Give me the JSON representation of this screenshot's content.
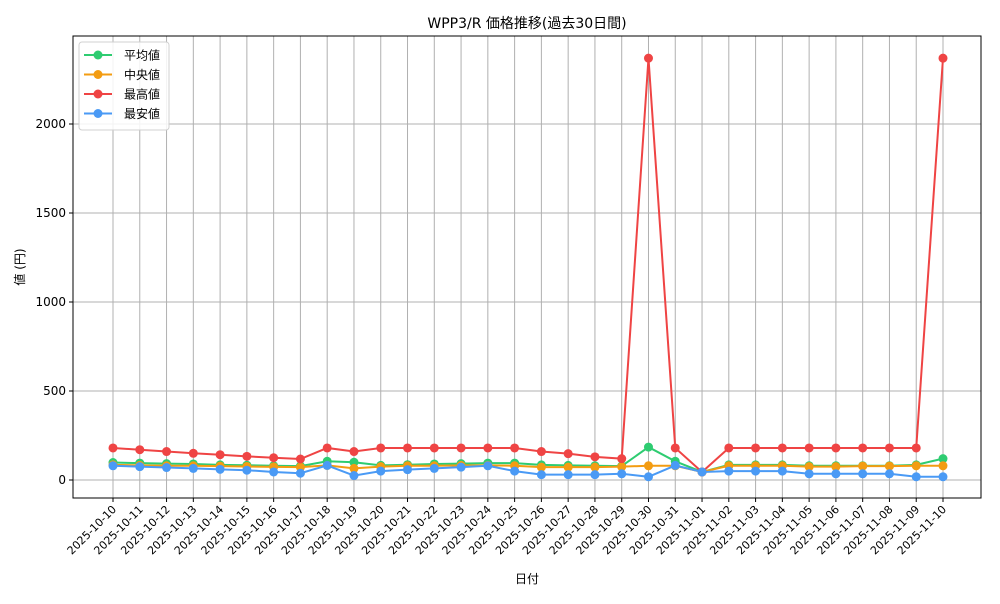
{
  "chart_data": {
    "type": "line",
    "title": "WPP3/R 価格推移(過去30日間)",
    "xlabel": "日付",
    "ylabel": "値 (円)",
    "ylim": [
      -95,
      2475
    ],
    "yticks": [
      0,
      500,
      1000,
      1500,
      2000
    ],
    "grid": true,
    "legend_position": "upper left",
    "categories": [
      "2025-10-10",
      "2025-10-11",
      "2025-10-12",
      "2025-10-13",
      "2025-10-14",
      "2025-10-15",
      "2025-10-16",
      "2025-10-17",
      "2025-10-18",
      "2025-10-19",
      "2025-10-20",
      "2025-10-21",
      "2025-10-22",
      "2025-10-23",
      "2025-10-24",
      "2025-10-25",
      "2025-10-26",
      "2025-10-27",
      "2025-10-28",
      "2025-10-29",
      "2025-10-30",
      "2025-10-31",
      "2025-11-01",
      "2025-11-02",
      "2025-11-03",
      "2025-11-04",
      "2025-11-05",
      "2025-11-06",
      "2025-11-07",
      "2025-11-08",
      "2025-11-09",
      "2025-11-10"
    ],
    "series": [
      {
        "name": "平均値",
        "color": "#2ecc71",
        "values": [
          98,
          95,
          92,
          90,
          85,
          83,
          80,
          78,
          105,
          100,
          82,
          86,
          90,
          92,
          95,
          95,
          85,
          82,
          80,
          78,
          185,
          105,
          45,
          85,
          85,
          85,
          80,
          80,
          80,
          80,
          85,
          120
        ]
      },
      {
        "name": "中央値",
        "color": "#f39c12",
        "values": [
          85,
          82,
          80,
          80,
          78,
          76,
          74,
          72,
          82,
          65,
          75,
          80,
          80,
          82,
          82,
          80,
          72,
          72,
          72,
          75,
          80,
          80,
          45,
          80,
          80,
          80,
          75,
          75,
          78,
          78,
          80,
          80
        ]
      },
      {
        "name": "最高値",
        "color": "#ef4444",
        "values": [
          180,
          170,
          160,
          150,
          142,
          133,
          125,
          118,
          180,
          160,
          180,
          180,
          180,
          180,
          180,
          180,
          160,
          148,
          130,
          120,
          2370,
          180,
          45,
          180,
          180,
          180,
          180,
          180,
          180,
          180,
          180,
          2370
        ]
      },
      {
        "name": "最安値",
        "color": "#4a9af5",
        "values": [
          80,
          75,
          70,
          65,
          60,
          55,
          45,
          38,
          82,
          25,
          50,
          58,
          65,
          72,
          80,
          50,
          30,
          30,
          30,
          35,
          18,
          82,
          45,
          50,
          50,
          50,
          35,
          35,
          35,
          35,
          18,
          18
        ]
      }
    ]
  }
}
